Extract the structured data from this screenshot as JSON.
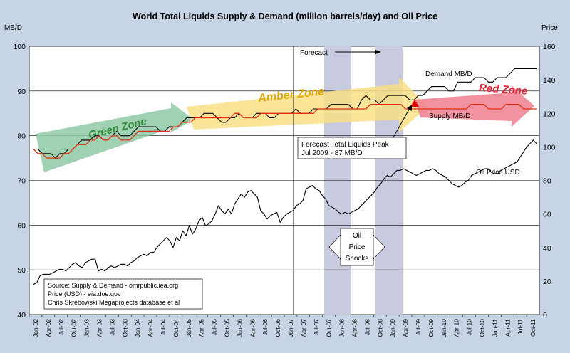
{
  "chart_data": {
    "type": "line",
    "title": "World Total Liquids Supply & Demand (million barrels/day) and Oil Price",
    "ylabel_left": "MB/D",
    "ylabel_right": "Price",
    "ylim_left": [
      40,
      100
    ],
    "ylim_right": [
      0,
      160
    ],
    "yticks_left": [
      40,
      50,
      60,
      70,
      80,
      90,
      100
    ],
    "yticks_right": [
      0,
      20,
      40,
      60,
      80,
      100,
      120,
      140,
      160
    ],
    "grid": true,
    "x_tick_labels": [
      "Jan-02",
      "Apr-02",
      "Jul-02",
      "Oct-02",
      "Jan-03",
      "Apr-03",
      "Jul-03",
      "Oct-03",
      "Jan-04",
      "Apr-04",
      "Jul-04",
      "Oct-04",
      "Jan-05",
      "Apr-05",
      "Jul-05",
      "Oct-05",
      "Jan-06",
      "Apr-06",
      "Jul-06",
      "Oct-06",
      "Jan-07",
      "Apr-07",
      "Jul-07",
      "Oct-07",
      "Jan-08",
      "Apr-08",
      "Jul-08",
      "Oct-08",
      "Jan-09",
      "Apr-09",
      "Jul-09",
      "Oct-09",
      "Jan-10",
      "Apr-10",
      "Jul-10",
      "Oct-10",
      "Jan-11",
      "Apr-11",
      "Jul-11",
      "Oct-11"
    ],
    "series": [
      {
        "name": "Demand MB/D",
        "axis": "left",
        "color": "#000000",
        "values": [
          77,
          77,
          76,
          76,
          76,
          75,
          76,
          76,
          77,
          77,
          78,
          79,
          79,
          79,
          80,
          80,
          79,
          79,
          80,
          81,
          80,
          80,
          80,
          81,
          82,
          82,
          82,
          82,
          82,
          81,
          81,
          82,
          82,
          82,
          83,
          84,
          84,
          84,
          84,
          85,
          85,
          85,
          84,
          83,
          83,
          84,
          84,
          85,
          84,
          84,
          84,
          85,
          85,
          85,
          84,
          84,
          85,
          85,
          85,
          85,
          86,
          85,
          85,
          85,
          86,
          86,
          86,
          86,
          87,
          87,
          87,
          87,
          87,
          86,
          86,
          88,
          89,
          88,
          88,
          87,
          88,
          89,
          89,
          89,
          89,
          89,
          88,
          88,
          89,
          89,
          90,
          91,
          91,
          91,
          91,
          90,
          90,
          92,
          92,
          92,
          92,
          93,
          93,
          93,
          92,
          92,
          93,
          93,
          93,
          94,
          95,
          95,
          95,
          95,
          95,
          95
        ]
      },
      {
        "name": "Supply MB/D",
        "axis": "left",
        "color": "#e03010",
        "values": [
          77,
          76,
          76,
          75,
          75,
          75,
          75,
          76,
          76,
          77,
          78,
          78,
          78,
          79,
          79,
          80,
          79,
          79,
          80,
          80,
          79,
          79,
          79,
          80,
          81,
          81,
          81,
          81,
          81,
          81,
          81,
          81,
          82,
          82,
          83,
          83,
          83,
          84,
          84,
          84,
          84,
          84,
          84,
          84,
          84,
          84,
          85,
          85,
          84,
          84,
          84,
          84,
          85,
          85,
          85,
          85,
          85,
          85,
          85,
          85,
          85,
          85,
          85,
          85,
          85,
          86,
          86,
          86,
          86,
          86,
          86,
          86,
          86,
          86,
          86,
          86,
          86,
          87,
          87,
          87,
          87,
          87,
          87,
          87,
          87,
          86,
          86,
          86,
          86,
          86,
          86,
          86,
          86,
          86,
          86,
          86,
          86,
          86,
          86,
          86,
          87,
          87,
          87,
          87,
          86,
          86,
          86,
          86,
          87,
          87,
          87,
          87,
          86,
          86,
          86,
          86
        ]
      },
      {
        "name": "Oil Price USD",
        "axis": "right",
        "color": "#000000",
        "values": [
          18,
          19,
          23,
          24,
          24,
          24,
          25,
          26,
          27,
          27,
          26,
          28,
          30,
          31,
          29,
          28,
          31,
          32,
          33,
          33,
          26,
          27,
          26,
          28,
          29,
          28,
          29,
          30,
          30,
          29,
          31,
          32,
          34,
          35,
          36,
          35,
          37,
          37,
          40,
          42,
          44,
          46,
          44,
          40,
          46,
          44,
          50,
          47,
          53,
          48,
          51,
          56,
          58,
          53,
          54,
          56,
          60,
          65,
          62,
          60,
          63,
          60,
          66,
          69,
          72,
          70,
          73,
          74,
          72,
          70,
          62,
          60,
          57,
          59,
          60,
          61,
          55,
          58,
          60,
          61,
          62,
          65,
          66,
          68,
          75,
          76,
          77,
          75,
          74,
          71,
          69,
          65,
          64,
          63,
          61,
          60,
          61,
          60,
          61,
          62,
          63,
          65,
          67,
          69,
          71,
          73,
          76,
          78,
          81,
          83,
          82,
          84,
          86,
          86,
          87,
          86,
          85,
          84,
          83,
          84,
          85,
          86,
          86,
          87,
          86,
          84,
          83,
          82,
          80,
          78,
          77,
          76,
          77,
          79,
          80,
          83,
          84,
          85,
          86,
          87,
          87,
          85,
          84,
          84,
          86,
          87,
          88,
          89,
          90,
          91,
          94,
          97,
          100,
          102,
          104,
          102
        ]
      }
    ],
    "annotations": {
      "forecast": "Forecast",
      "peak_line1": "Forecast Total Liquids Peak",
      "peak_line2": "Jul 2009 - 87 MB/D",
      "demand_label": "Demand MB/D",
      "supply_label": "Supply MB/D",
      "price_label": "Oil Price USD",
      "shocks_line1": "Oil",
      "shocks_line2": "Price",
      "shocks_line3": "Shocks",
      "green_zone": "Green Zone",
      "amber_zone": "Amber Zone",
      "red_zone": "Red Zone",
      "source_line1": "Source: Supply & Demand - omrpublic.iea.org",
      "source_line2": "Price (USD) - eia.doe.gov",
      "source_line3": "Chris Skrebowski Megaprojects database et al"
    },
    "colors": {
      "background": "#c6d4e6",
      "plot_area": "#ffffff",
      "shock_band": "#c8cadf",
      "green_zone": "#8fc9a6",
      "amber_zone": "#f8df86",
      "red_zone": "#f07f8f",
      "zone_text_green": "#2e8b3a",
      "zone_text_amber": "#e0a800",
      "zone_text_red": "#e2263a",
      "peak_marker": "#e00000"
    }
  }
}
